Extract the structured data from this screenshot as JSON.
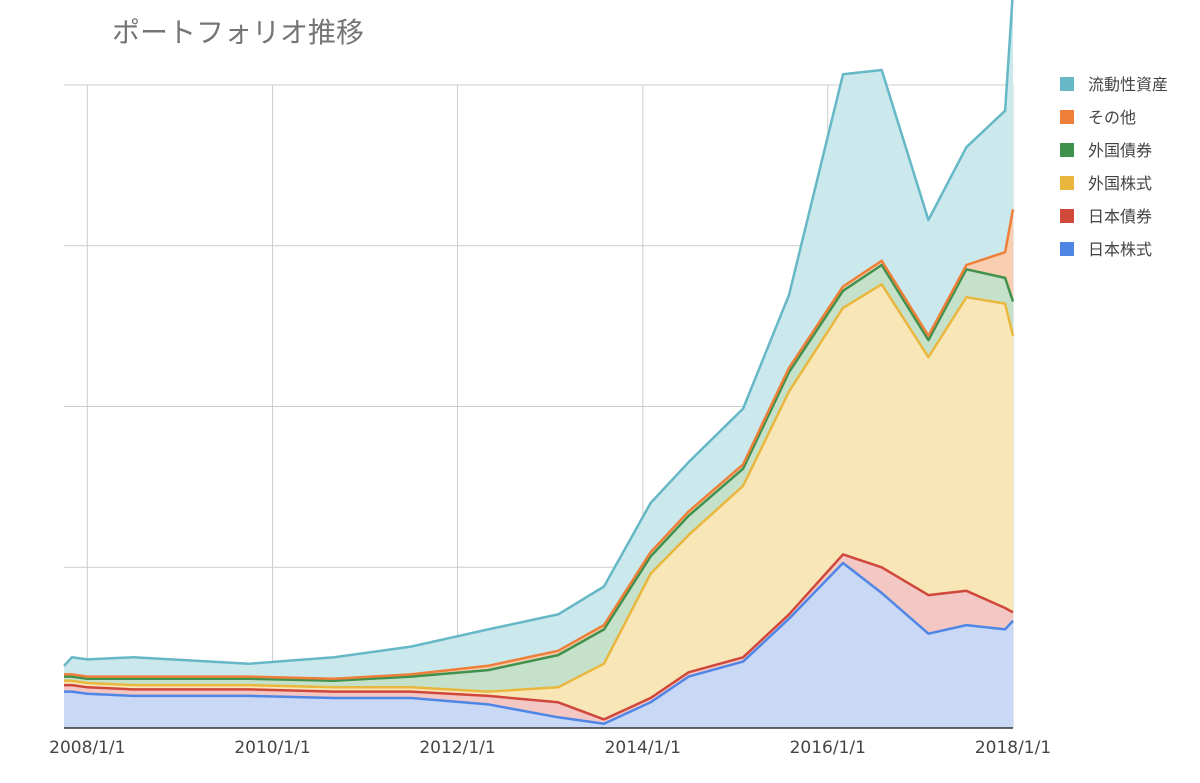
{
  "chart_data": {
    "type": "area",
    "stacked": true,
    "title": "ポートフォリオ推移",
    "xlabel": "",
    "ylabel": "",
    "x_ticks": [
      "2008/1/1",
      "2010/1/1",
      "2012/1/1",
      "2014/1/1",
      "2016/1/1",
      "2018/1/1"
    ],
    "x": [
      "2007/10/1",
      "2007/11/1",
      "2008/1/1",
      "2008/7/1",
      "2009/10/1",
      "2010/9/1",
      "2011/7/1",
      "2012/5/1",
      "2013/2/1",
      "2013/8/1",
      "2014/2/1",
      "2014/7/1",
      "2015/2/1",
      "2015/8/1",
      "2016/3/1",
      "2016/8/1",
      "2017/2/1",
      "2017/7/1",
      "2017/12/1",
      "2018/1/1"
    ],
    "y_max": 300,
    "grid": true,
    "legend_position": "right",
    "series": [
      {
        "name": "日本株式",
        "color": "#4f86e6",
        "fill": "#c9d9f5",
        "values": [
          17,
          17,
          16,
          15,
          15,
          14,
          14,
          11,
          5,
          2,
          12,
          24,
          31,
          51,
          77,
          63,
          44,
          48,
          46,
          50
        ]
      },
      {
        "name": "日本債券",
        "color": "#d0473b",
        "fill": "#f3c7c3",
        "values": [
          3,
          3,
          3,
          3,
          3,
          3,
          3,
          4,
          7,
          2,
          2,
          2,
          2,
          2,
          4,
          12,
          18,
          16,
          10,
          4
        ]
      },
      {
        "name": "外国株式",
        "color": "#e9b73e",
        "fill": "#f9e6b7",
        "values": [
          2,
          2,
          2,
          2,
          2,
          2,
          2,
          2,
          7,
          26,
          58,
          64,
          80,
          104,
          115,
          132,
          111,
          137,
          142,
          129
        ]
      },
      {
        "name": "外国債券",
        "color": "#3f914d",
        "fill": "#c6e1c9",
        "values": [
          2,
          2,
          2,
          3,
          3,
          3,
          5,
          10,
          15,
          16,
          8,
          9,
          8,
          9,
          8,
          9,
          8,
          13,
          12,
          16
        ]
      },
      {
        "name": "その他",
        "color": "#ee7f38",
        "fill": "#f9cdb0",
        "values": [
          1,
          1,
          1,
          1,
          1,
          1,
          1,
          2,
          2,
          2,
          2,
          2,
          2,
          2,
          2,
          2,
          2,
          2,
          12,
          43
        ]
      },
      {
        "name": "流動性資産",
        "color": "#66b8c6",
        "fill": "#cbe8ec",
        "values": [
          4,
          8,
          8,
          9,
          6,
          10,
          13,
          17,
          17,
          18,
          23,
          23,
          26,
          34,
          99,
          89,
          54,
          55,
          66,
          102
        ]
      }
    ]
  }
}
